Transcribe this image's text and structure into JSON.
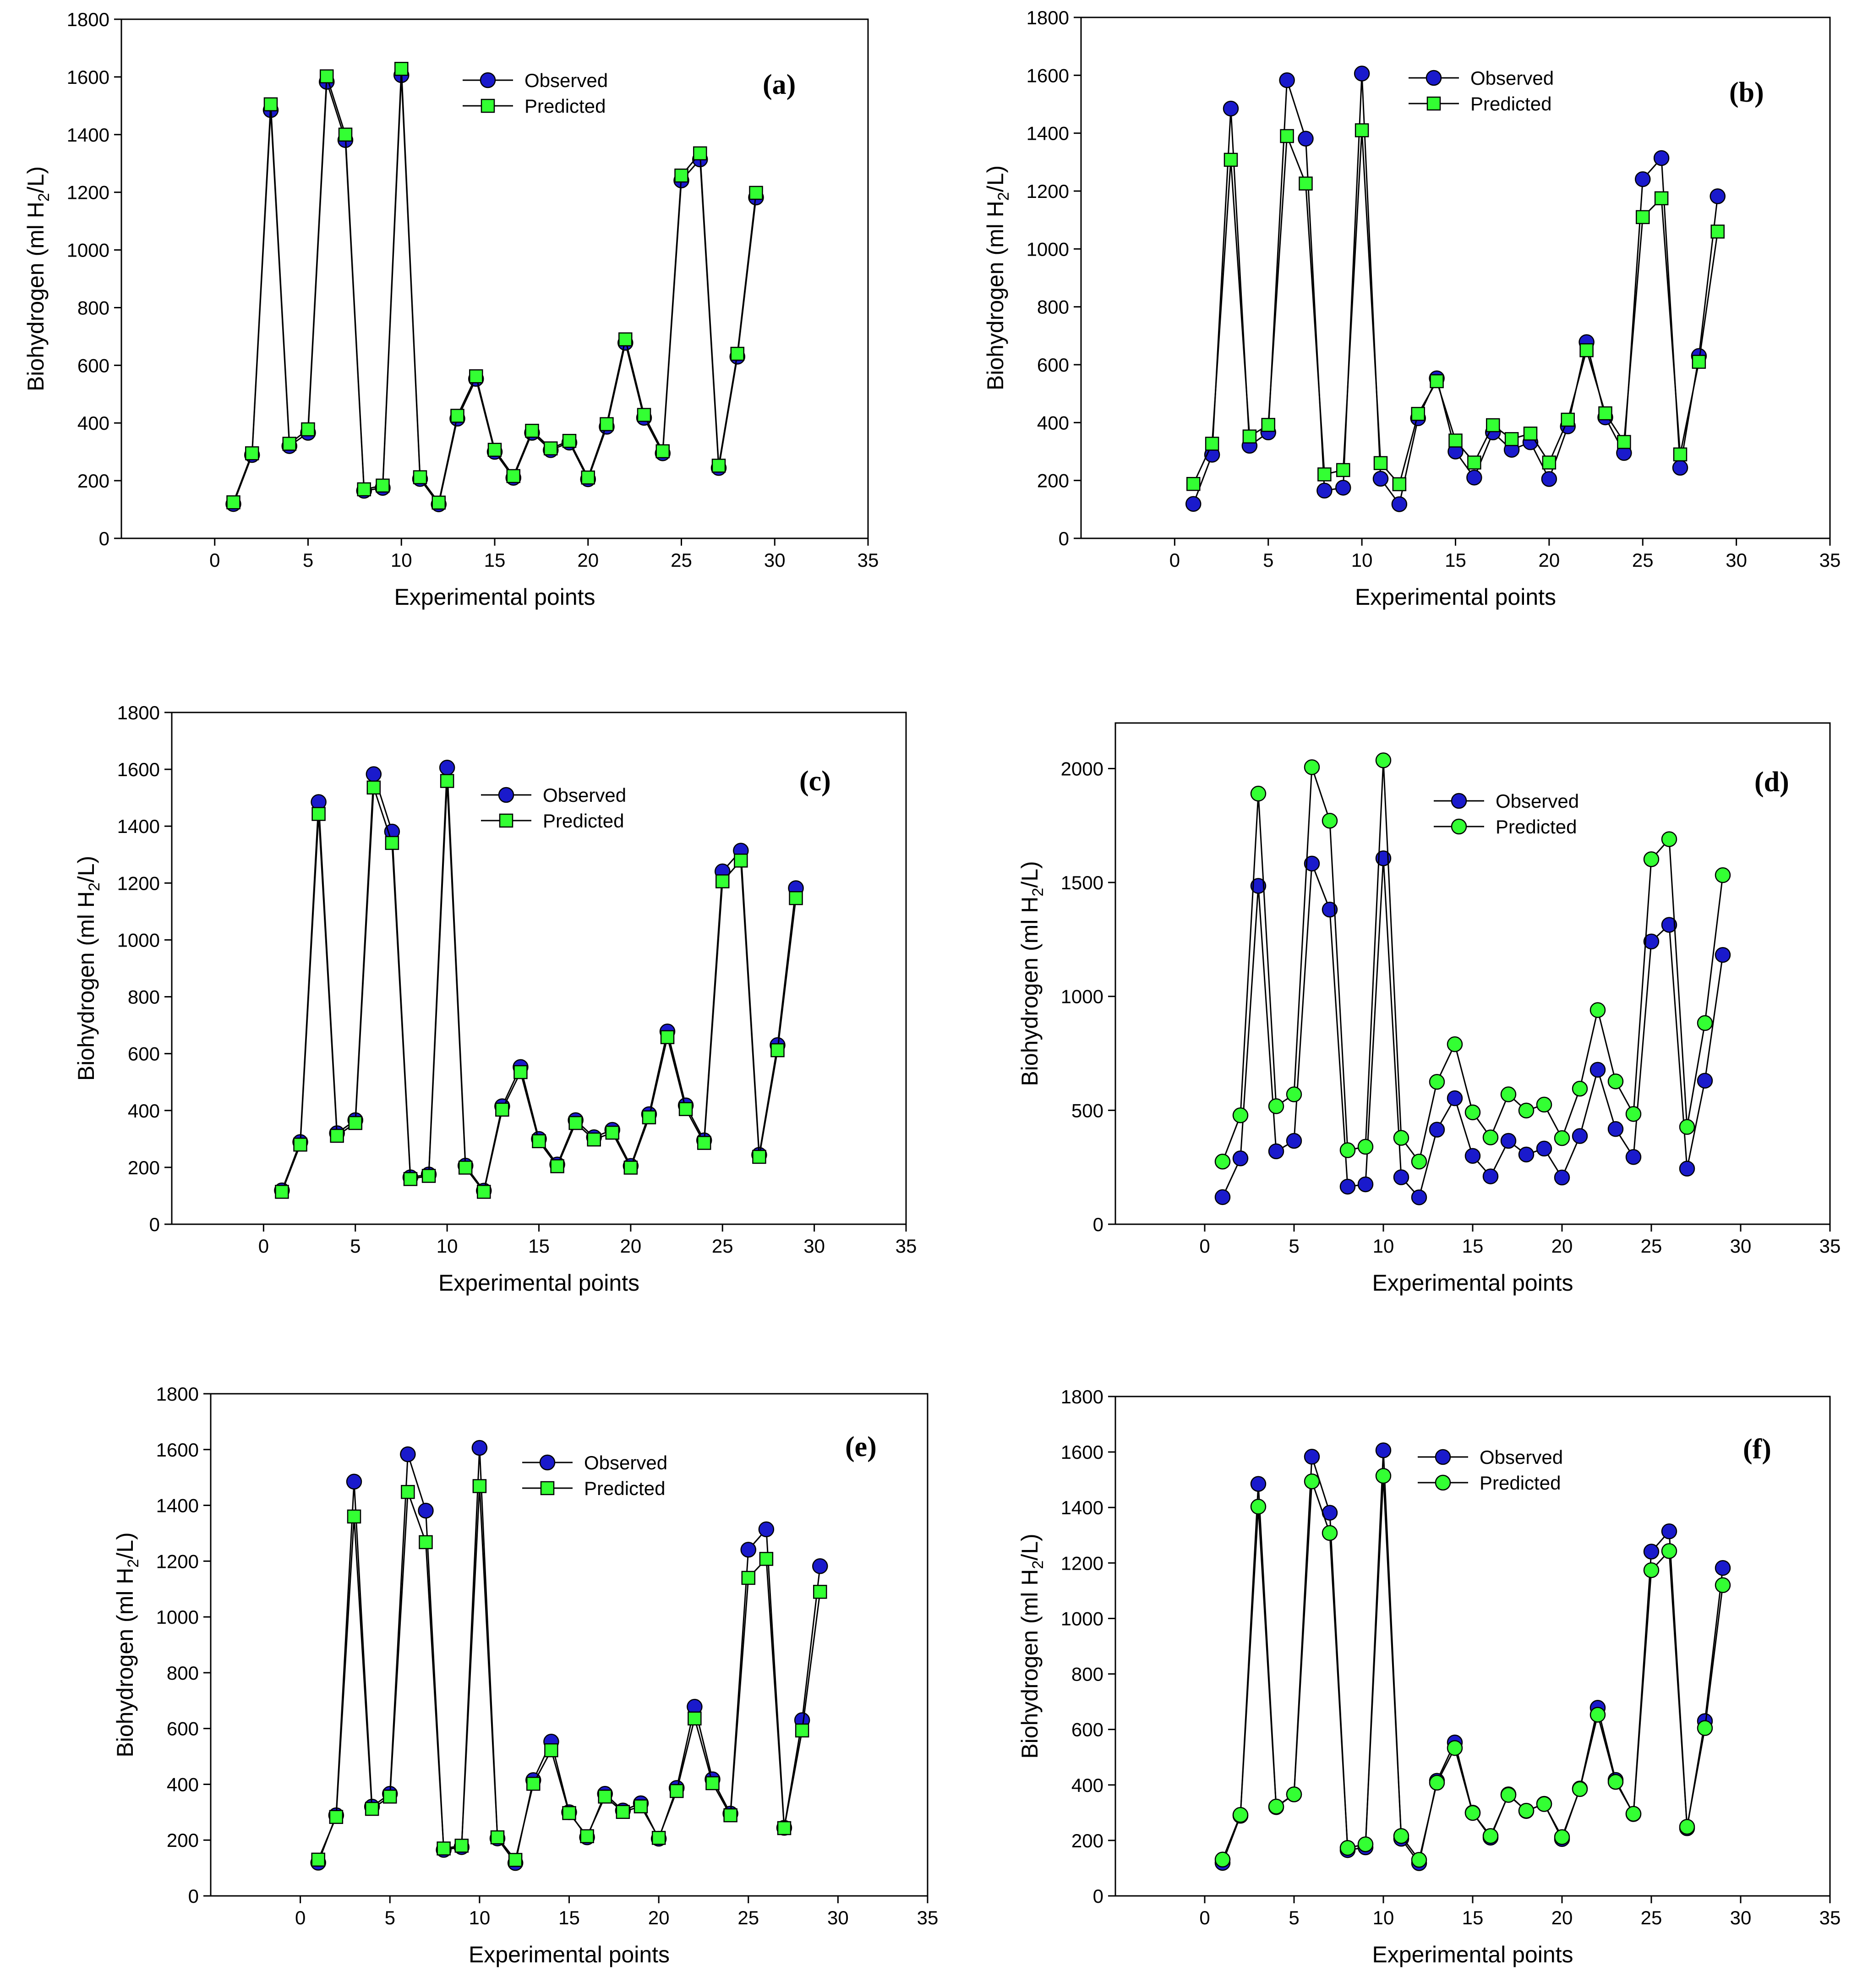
{
  "figure": {
    "panels": [
      {
        "id": "a",
        "label": "(a)",
        "title": "",
        "xlabel": "Experimental points",
        "ylabel": "Biohydrogen (ml H₂/L)"
      },
      {
        "id": "b",
        "label": "(b)",
        "title": "",
        "xlabel": "Experimental points",
        "ylabel": "Biohydrogen (ml H₂/L)"
      },
      {
        "id": "c",
        "label": "(c)",
        "title": "",
        "xlabel": "Experimental points",
        "ylabel": "Biohydrogen (ml H₂/L)"
      },
      {
        "id": "d",
        "label": "(d)",
        "title": "",
        "xlabel": "Experimental points",
        "ylabel": "Biohydrogen (ml H₂/L)"
      },
      {
        "id": "e",
        "label": "(e)",
        "title": "",
        "xlabel": "Experimental points",
        "ylabel": "Biohydrogen (ml H₂/L)"
      },
      {
        "id": "f",
        "label": "(f)",
        "title": "",
        "xlabel": "Experimental points",
        "ylabel": "Biohydrogen (ml H₂/L)"
      }
    ]
  },
  "chart_data": [
    {
      "type": "line",
      "label": "(a)",
      "title": "",
      "xlabel": "Experimental points",
      "ylabel": "Biohydrogen (ml H2/L)",
      "xlim": [
        -5,
        35
      ],
      "ylim": [
        0,
        1800
      ],
      "xticks": [
        0,
        5,
        10,
        15,
        20,
        25,
        30,
        35
      ],
      "yticks": [
        0,
        200,
        400,
        600,
        800,
        1000,
        1200,
        1400,
        1600,
        1800
      ],
      "legend_position": "top-center",
      "x": [
        1,
        2,
        3,
        4,
        5,
        6,
        7,
        8,
        9,
        10,
        11,
        12,
        13,
        14,
        15,
        16,
        17,
        18,
        19,
        20,
        21,
        22,
        23,
        24,
        25,
        26,
        27,
        28,
        29
      ],
      "series": [
        {
          "name": "Observed",
          "marker": "circle",
          "color": "#1a1acc",
          "values": [
            119,
            289,
            1485,
            320,
            366,
            1583,
            1381,
            165,
            175,
            1606,
            206,
            118,
            415,
            553,
            300,
            210,
            366,
            306,
            332,
            205,
            387,
            678,
            418,
            295,
            1241,
            1314,
            244,
            630,
            1182
          ]
        },
        {
          "name": "Predicted",
          "marker": "square",
          "color": "#33ff33",
          "values": [
            125,
            295,
            1505,
            328,
            378,
            1602,
            1400,
            170,
            183,
            1628,
            212,
            124,
            425,
            562,
            307,
            216,
            373,
            312,
            338,
            211,
            396,
            690,
            428,
            302,
            1258,
            1335,
            252,
            640,
            1198
          ]
        }
      ]
    },
    {
      "type": "line",
      "label": "(b)",
      "title": "",
      "xlabel": "Experimental points",
      "ylabel": "Biohydrogen (ml H2/L)",
      "xlim": [
        -5,
        35
      ],
      "ylim": [
        0,
        1800
      ],
      "xticks": [
        0,
        5,
        10,
        15,
        20,
        25,
        30,
        35
      ],
      "yticks": [
        0,
        200,
        400,
        600,
        800,
        1000,
        1200,
        1400,
        1600,
        1800
      ],
      "legend_position": "top-center",
      "x": [
        1,
        2,
        3,
        4,
        5,
        6,
        7,
        8,
        9,
        10,
        11,
        12,
        13,
        14,
        15,
        16,
        17,
        18,
        19,
        20,
        21,
        22,
        23,
        24,
        25,
        26,
        27,
        28,
        29
      ],
      "series": [
        {
          "name": "Observed",
          "marker": "circle",
          "color": "#1a1acc",
          "values": [
            119,
            289,
            1485,
            320,
            366,
            1583,
            1381,
            165,
            175,
            1606,
            206,
            118,
            415,
            553,
            300,
            210,
            366,
            306,
            332,
            205,
            387,
            678,
            418,
            295,
            1241,
            1314,
            244,
            630,
            1182
          ]
        },
        {
          "name": "Predicted",
          "marker": "square",
          "color": "#33ff33",
          "values": [
            188,
            327,
            1308,
            352,
            392,
            1390,
            1226,
            221,
            236,
            1410,
            260,
            187,
            430,
            543,
            338,
            262,
            391,
            343,
            362,
            262,
            410,
            650,
            432,
            333,
            1110,
            1175,
            290,
            610,
            1060
          ]
        }
      ]
    },
    {
      "type": "line",
      "label": "(c)",
      "title": "",
      "xlabel": "Experimental points",
      "ylabel": "Biohydrogen (ml H2/L)",
      "xlim": [
        -5,
        35
      ],
      "ylim": [
        0,
        1800
      ],
      "xticks": [
        0,
        5,
        10,
        15,
        20,
        25,
        30,
        35
      ],
      "yticks": [
        0,
        200,
        400,
        600,
        800,
        1000,
        1200,
        1400,
        1600,
        1800
      ],
      "legend_position": "top-center",
      "x": [
        1,
        2,
        3,
        4,
        5,
        6,
        7,
        8,
        9,
        10,
        11,
        12,
        13,
        14,
        15,
        16,
        17,
        18,
        19,
        20,
        21,
        22,
        23,
        24,
        25,
        26,
        27,
        28,
        29
      ],
      "series": [
        {
          "name": "Observed",
          "marker": "circle",
          "color": "#1a1acc",
          "values": [
            119,
            289,
            1485,
            320,
            366,
            1583,
            1381,
            165,
            175,
            1606,
            206,
            118,
            415,
            553,
            300,
            210,
            366,
            306,
            332,
            205,
            387,
            678,
            418,
            295,
            1241,
            1314,
            244,
            630,
            1182
          ]
        },
        {
          "name": "Predicted",
          "marker": "square",
          "color": "#33ff33",
          "values": [
            114,
            280,
            1443,
            311,
            356,
            1536,
            1341,
            159,
            170,
            1559,
            199,
            114,
            403,
            535,
            292,
            204,
            356,
            298,
            322,
            199,
            376,
            658,
            405,
            286,
            1206,
            1279,
            237,
            612,
            1147
          ]
        }
      ]
    },
    {
      "type": "line",
      "label": "(d)",
      "title": "",
      "xlabel": "Experimental points",
      "ylabel": "Biohydrogen (ml H2/L)",
      "xlim": [
        -5,
        35
      ],
      "ylim": [
        0,
        2200
      ],
      "xticks": [
        0,
        5,
        10,
        15,
        20,
        25,
        30,
        35
      ],
      "yticks": [
        0,
        500,
        1000,
        1500,
        2000
      ],
      "legend_position": "top-center",
      "x": [
        1,
        2,
        3,
        4,
        5,
        6,
        7,
        8,
        9,
        10,
        11,
        12,
        13,
        14,
        15,
        16,
        17,
        18,
        19,
        20,
        21,
        22,
        23,
        24,
        25,
        26,
        27,
        28,
        29
      ],
      "series": [
        {
          "name": "Observed",
          "marker": "circle",
          "color": "#1a1acc",
          "values": [
            119,
            289,
            1485,
            320,
            366,
            1583,
            1381,
            165,
            175,
            1606,
            206,
            118,
            415,
            553,
            300,
            210,
            366,
            306,
            332,
            205,
            387,
            678,
            418,
            295,
            1241,
            1314,
            244,
            630,
            1182
          ]
        },
        {
          "name": "Predicted",
          "marker": "circle",
          "color": "#33ff33",
          "values": [
            275,
            478,
            1890,
            518,
            570,
            2006,
            1771,
            325,
            340,
            2036,
            379,
            275,
            625,
            790,
            491,
            381,
            570,
            499,
            525,
            378,
            595,
            940,
            627,
            484,
            1602,
            1690,
            427,
            883,
            1532
          ]
        }
      ]
    },
    {
      "type": "line",
      "label": "(e)",
      "title": "",
      "xlabel": "Experimental points",
      "ylabel": "Biohydrogen (ml H2/L)",
      "xlim": [
        -5,
        35
      ],
      "ylim": [
        0,
        1800
      ],
      "xticks": [
        0,
        5,
        10,
        15,
        20,
        25,
        30,
        35
      ],
      "yticks": [
        0,
        200,
        400,
        600,
        800,
        1000,
        1200,
        1400,
        1600,
        1800
      ],
      "legend_position": "top-center",
      "x": [
        1,
        2,
        3,
        4,
        5,
        6,
        7,
        8,
        9,
        10,
        11,
        12,
        13,
        14,
        15,
        16,
        17,
        18,
        19,
        20,
        21,
        22,
        23,
        24,
        25,
        26,
        27,
        28,
        29
      ],
      "series": [
        {
          "name": "Observed",
          "marker": "circle",
          "color": "#1a1acc",
          "values": [
            119,
            289,
            1485,
            320,
            366,
            1583,
            1381,
            165,
            175,
            1606,
            206,
            118,
            415,
            553,
            300,
            210,
            366,
            306,
            332,
            205,
            387,
            678,
            418,
            295,
            1241,
            1314,
            244,
            630,
            1182
          ]
        },
        {
          "name": "Predicted",
          "marker": "square",
          "color": "#33ff33",
          "values": [
            130,
            283,
            1360,
            312,
            356,
            1448,
            1268,
            170,
            180,
            1469,
            210,
            129,
            402,
            522,
            297,
            214,
            356,
            301,
            321,
            208,
            376,
            636,
            404,
            289,
            1140,
            1208,
            243,
            593,
            1090
          ]
        }
      ]
    },
    {
      "type": "line",
      "label": "(f)",
      "title": "",
      "xlabel": "Experimental points",
      "ylabel": "Biohydrogen (ml H2/L)",
      "xlim": [
        -5,
        35
      ],
      "ylim": [
        0,
        1800
      ],
      "xticks": [
        0,
        5,
        10,
        15,
        20,
        25,
        30,
        35
      ],
      "yticks": [
        0,
        200,
        400,
        600,
        800,
        1000,
        1200,
        1400,
        1600,
        1800
      ],
      "legend_position": "top-center",
      "x": [
        1,
        2,
        3,
        4,
        5,
        6,
        7,
        8,
        9,
        10,
        11,
        12,
        13,
        14,
        15,
        16,
        17,
        18,
        19,
        20,
        21,
        22,
        23,
        24,
        25,
        26,
        27,
        28,
        29
      ],
      "series": [
        {
          "name": "Observed",
          "marker": "circle",
          "color": "#1a1acc",
          "values": [
            119,
            289,
            1485,
            320,
            366,
            1583,
            1381,
            165,
            175,
            1606,
            206,
            118,
            415,
            553,
            300,
            210,
            366,
            306,
            332,
            205,
            387,
            678,
            418,
            295,
            1241,
            1314,
            244,
            630,
            1182
          ]
        },
        {
          "name": "Predicted",
          "marker": "circle",
          "color": "#33ff33",
          "values": [
            131,
            292,
            1403,
            322,
            366,
            1494,
            1308,
            173,
            186,
            1514,
            216,
            130,
            408,
            533,
            299,
            216,
            364,
            307,
            331,
            212,
            385,
            653,
            411,
            296,
            1174,
            1243,
            249,
            605,
            1120
          ]
        }
      ]
    }
  ]
}
